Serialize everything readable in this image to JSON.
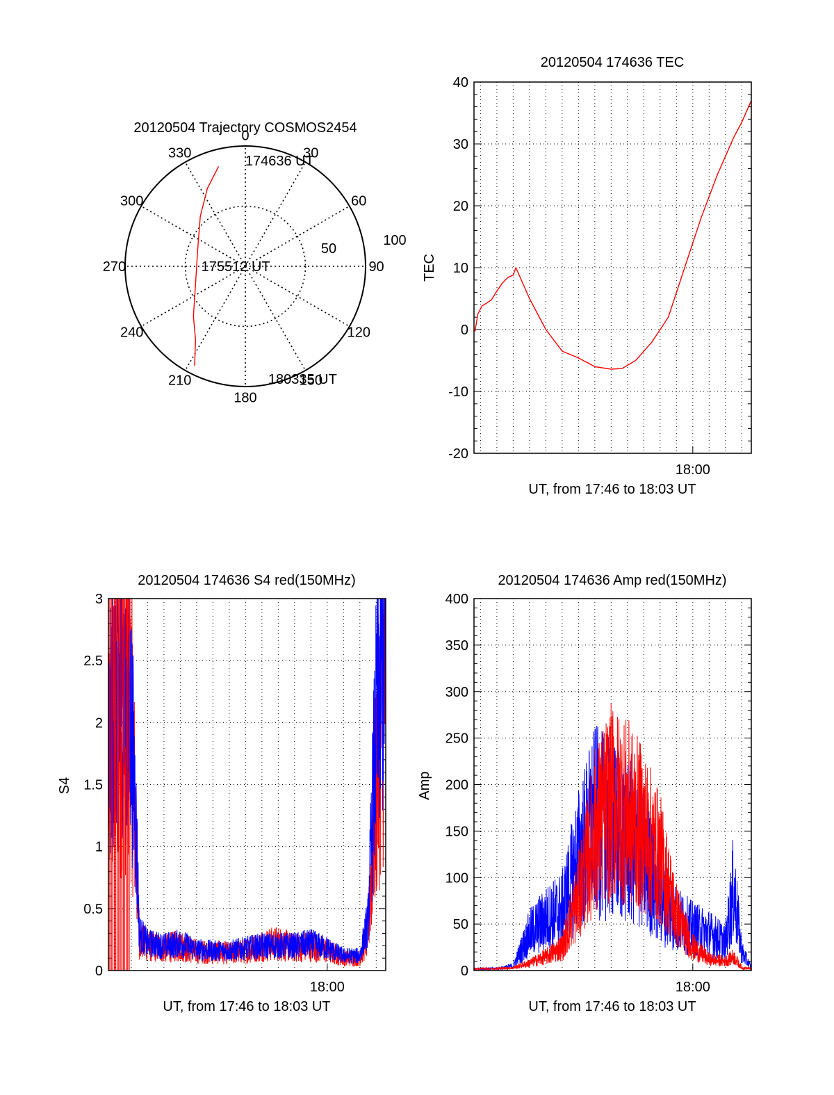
{
  "colors": {
    "red": "#ff0000",
    "blue": "#0000ff",
    "axis": "#000000",
    "grid": "#000000",
    "background": "#ffffff"
  },
  "chart_data": [
    {
      "id": "trajectory",
      "type": "polar",
      "title": "20120504 Trajectory COSMOS2454",
      "azimuth_labels": [
        {
          "az": 0,
          "label": "0"
        },
        {
          "az": 30,
          "label": "30"
        },
        {
          "az": 60,
          "label": "60"
        },
        {
          "az": 90,
          "label": "90"
        },
        {
          "az": 120,
          "label": "120"
        },
        {
          "az": 150,
          "label": "150"
        },
        {
          "az": 180,
          "label": "180"
        },
        {
          "az": 210,
          "label": "210"
        },
        {
          "az": 240,
          "label": "240"
        },
        {
          "az": 270,
          "label": "270"
        },
        {
          "az": 300,
          "label": "300"
        },
        {
          "az": 330,
          "label": "330"
        }
      ],
      "radial_max": 100,
      "radial_rings": [
        50,
        100
      ],
      "radial_labels": [
        "50",
        "100"
      ],
      "trajectory": [
        {
          "az": 345,
          "r": 86
        },
        {
          "az": 334,
          "r": 72
        },
        {
          "az": 318,
          "r": 56
        },
        {
          "az": 300,
          "r": 45
        },
        {
          "az": 283,
          "r": 41
        },
        {
          "az": 264,
          "r": 41
        },
        {
          "az": 243,
          "r": 47
        },
        {
          "az": 226,
          "r": 60
        },
        {
          "az": 214,
          "r": 74
        },
        {
          "az": 207,
          "r": 93
        }
      ],
      "annotations": [
        {
          "text": "174636 UT",
          "az": 356,
          "r": 88
        },
        {
          "text": "175512 UT",
          "az": 270,
          "r": 8
        },
        {
          "text": "180335 UT",
          "az": 167,
          "r": 96
        }
      ]
    },
    {
      "id": "tec",
      "type": "line",
      "title": "20120504 174636 TEC",
      "xlabel": "UT, from 17:46 to 18:03 UT",
      "ylabel": "TEC",
      "xlim": [
        "17:46:36",
        "18:03:35"
      ],
      "ylim": [
        -20,
        40
      ],
      "yticks": [
        "-20",
        "-10",
        "0",
        "10",
        "20",
        "30",
        "40"
      ],
      "xtick_labels": [
        {
          "t": "18:00",
          "label": "18:00"
        }
      ],
      "grid": true,
      "series": [
        {
          "color": "#ff0000",
          "points": [
            [
              "17:46:36",
              0
            ],
            [
              "17:46:40",
              -0.2
            ],
            [
              "17:46:50",
              2.5
            ],
            [
              "17:47:05",
              3.8
            ],
            [
              "17:47:20",
              4.2
            ],
            [
              "17:47:40",
              4.8
            ],
            [
              "17:48:00",
              6.2
            ],
            [
              "17:48:20",
              7.5
            ],
            [
              "17:48:40",
              8.4
            ],
            [
              "17:49:00",
              8.8
            ],
            [
              "17:49:10",
              10
            ],
            [
              "17:50:00",
              5
            ],
            [
              "17:51:00",
              0
            ],
            [
              "17:52:00",
              -3.5
            ],
            [
              "17:53:00",
              -4.6
            ],
            [
              "17:54:00",
              -6
            ],
            [
              "17:55:00",
              -6.4
            ],
            [
              "17:55:40",
              -6.3
            ],
            [
              "17:56:30",
              -5
            ],
            [
              "17:57:30",
              -2
            ],
            [
              "17:58:30",
              2
            ],
            [
              "17:59:30",
              10
            ],
            [
              "18:00:30",
              18
            ],
            [
              "18:01:30",
              25
            ],
            [
              "18:02:30",
              31
            ],
            [
              "18:03:00",
              33.5
            ],
            [
              "18:03:35",
              37
            ]
          ]
        }
      ]
    },
    {
      "id": "s4",
      "type": "line",
      "title": "20120504 174636 S4 red(150MHz)",
      "xlabel": "UT, from 17:46 to 18:03 UT",
      "ylabel": "S4",
      "xlim": [
        "17:46:36",
        "18:03:35"
      ],
      "ylim": [
        0,
        3
      ],
      "yticks": [
        "0",
        "0.5",
        "1",
        "1.5",
        "2",
        "2.5",
        "3"
      ],
      "xtick_labels": [
        {
          "t": "18:00",
          "label": "18:00"
        }
      ],
      "grid": true,
      "series": [
        {
          "color": "#ff0000",
          "points": [
            [
              "17:46:36",
              1.5
            ],
            [
              "17:47:00",
              2.0
            ],
            [
              "17:47:30",
              2.2
            ],
            [
              "17:48:00",
              2.0
            ],
            [
              "17:48:15",
              1.2
            ],
            [
              "17:48:30",
              0.25
            ],
            [
              "17:49:00",
              0.2
            ],
            [
              "17:50:00",
              0.18
            ],
            [
              "17:51:00",
              0.2
            ],
            [
              "17:52:00",
              0.15
            ],
            [
              "17:53:00",
              0.15
            ],
            [
              "17:54:00",
              0.14
            ],
            [
              "17:55:00",
              0.16
            ],
            [
              "17:56:00",
              0.2
            ],
            [
              "17:57:00",
              0.22
            ],
            [
              "17:58:00",
              0.18
            ],
            [
              "17:59:00",
              0.2
            ],
            [
              "18:00:00",
              0.16
            ],
            [
              "18:01:00",
              0.1
            ],
            [
              "18:02:00",
              0.1
            ],
            [
              "18:02:30",
              0.3
            ],
            [
              "18:03:00",
              1.5
            ],
            [
              "18:03:35",
              2.6
            ]
          ]
        },
        {
          "color": "#0000ff",
          "points": [
            [
              "17:46:36",
              1.8
            ],
            [
              "17:47:00",
              2.2
            ],
            [
              "17:47:30",
              2.3
            ],
            [
              "17:48:00",
              2.0
            ],
            [
              "17:48:15",
              1.3
            ],
            [
              "17:48:30",
              0.3
            ],
            [
              "17:49:00",
              0.22
            ],
            [
              "17:50:00",
              0.2
            ],
            [
              "17:51:00",
              0.22
            ],
            [
              "17:52:00",
              0.17
            ],
            [
              "17:53:00",
              0.16
            ],
            [
              "17:54:00",
              0.16
            ],
            [
              "17:55:00",
              0.18
            ],
            [
              "17:56:00",
              0.2
            ],
            [
              "17:57:00",
              0.2
            ],
            [
              "17:58:00",
              0.2
            ],
            [
              "17:59:00",
              0.22
            ],
            [
              "18:00:00",
              0.18
            ],
            [
              "18:01:00",
              0.12
            ],
            [
              "18:02:00",
              0.12
            ],
            [
              "18:02:30",
              0.4
            ],
            [
              "18:03:00",
              2.0
            ],
            [
              "18:03:35",
              2.8
            ]
          ]
        }
      ]
    },
    {
      "id": "amp",
      "type": "line",
      "title": "20120504 174636 Amp red(150MHz)",
      "xlabel": "UT, from 17:46 to 18:03 UT",
      "ylabel": "Amp",
      "xlim": [
        "17:46:36",
        "18:03:35"
      ],
      "ylim": [
        0,
        400
      ],
      "yticks": [
        "0",
        "50",
        "100",
        "150",
        "200",
        "250",
        "300",
        "350",
        "400"
      ],
      "xtick_labels": [
        {
          "t": "18:00",
          "label": "18:00"
        }
      ],
      "grid": true,
      "series": [
        {
          "color": "#ff0000",
          "points": [
            [
              "17:46:36",
              2
            ],
            [
              "17:48:00",
              2
            ],
            [
              "17:49:00",
              3
            ],
            [
              "17:50:00",
              8
            ],
            [
              "17:51:00",
              15
            ],
            [
              "17:52:00",
              25
            ],
            [
              "17:53:00",
              80
            ],
            [
              "17:54:00",
              150
            ],
            [
              "17:55:00",
              180
            ],
            [
              "17:56:00",
              170
            ],
            [
              "17:57:00",
              150
            ],
            [
              "17:58:00",
              120
            ],
            [
              "17:59:00",
              60
            ],
            [
              "18:00:00",
              25
            ],
            [
              "18:01:00",
              12
            ],
            [
              "18:02:00",
              10
            ],
            [
              "18:02:30",
              15
            ],
            [
              "18:03:00",
              3
            ],
            [
              "18:03:35",
              2
            ]
          ]
        },
        {
          "color": "#0000ff",
          "points": [
            [
              "17:46:36",
              2
            ],
            [
              "17:48:00",
              2
            ],
            [
              "17:49:00",
              5
            ],
            [
              "17:50:00",
              40
            ],
            [
              "17:51:00",
              55
            ],
            [
              "17:52:00",
              65
            ],
            [
              "17:53:00",
              120
            ],
            [
              "17:54:00",
              160
            ],
            [
              "17:55:00",
              150
            ],
            [
              "17:56:00",
              140
            ],
            [
              "17:57:00",
              120
            ],
            [
              "17:58:00",
              80
            ],
            [
              "17:59:00",
              55
            ],
            [
              "18:00:00",
              45
            ],
            [
              "18:01:00",
              40
            ],
            [
              "18:02:00",
              30
            ],
            [
              "18:02:30",
              90
            ],
            [
              "18:03:00",
              20
            ],
            [
              "18:03:35",
              3
            ]
          ]
        }
      ]
    }
  ]
}
